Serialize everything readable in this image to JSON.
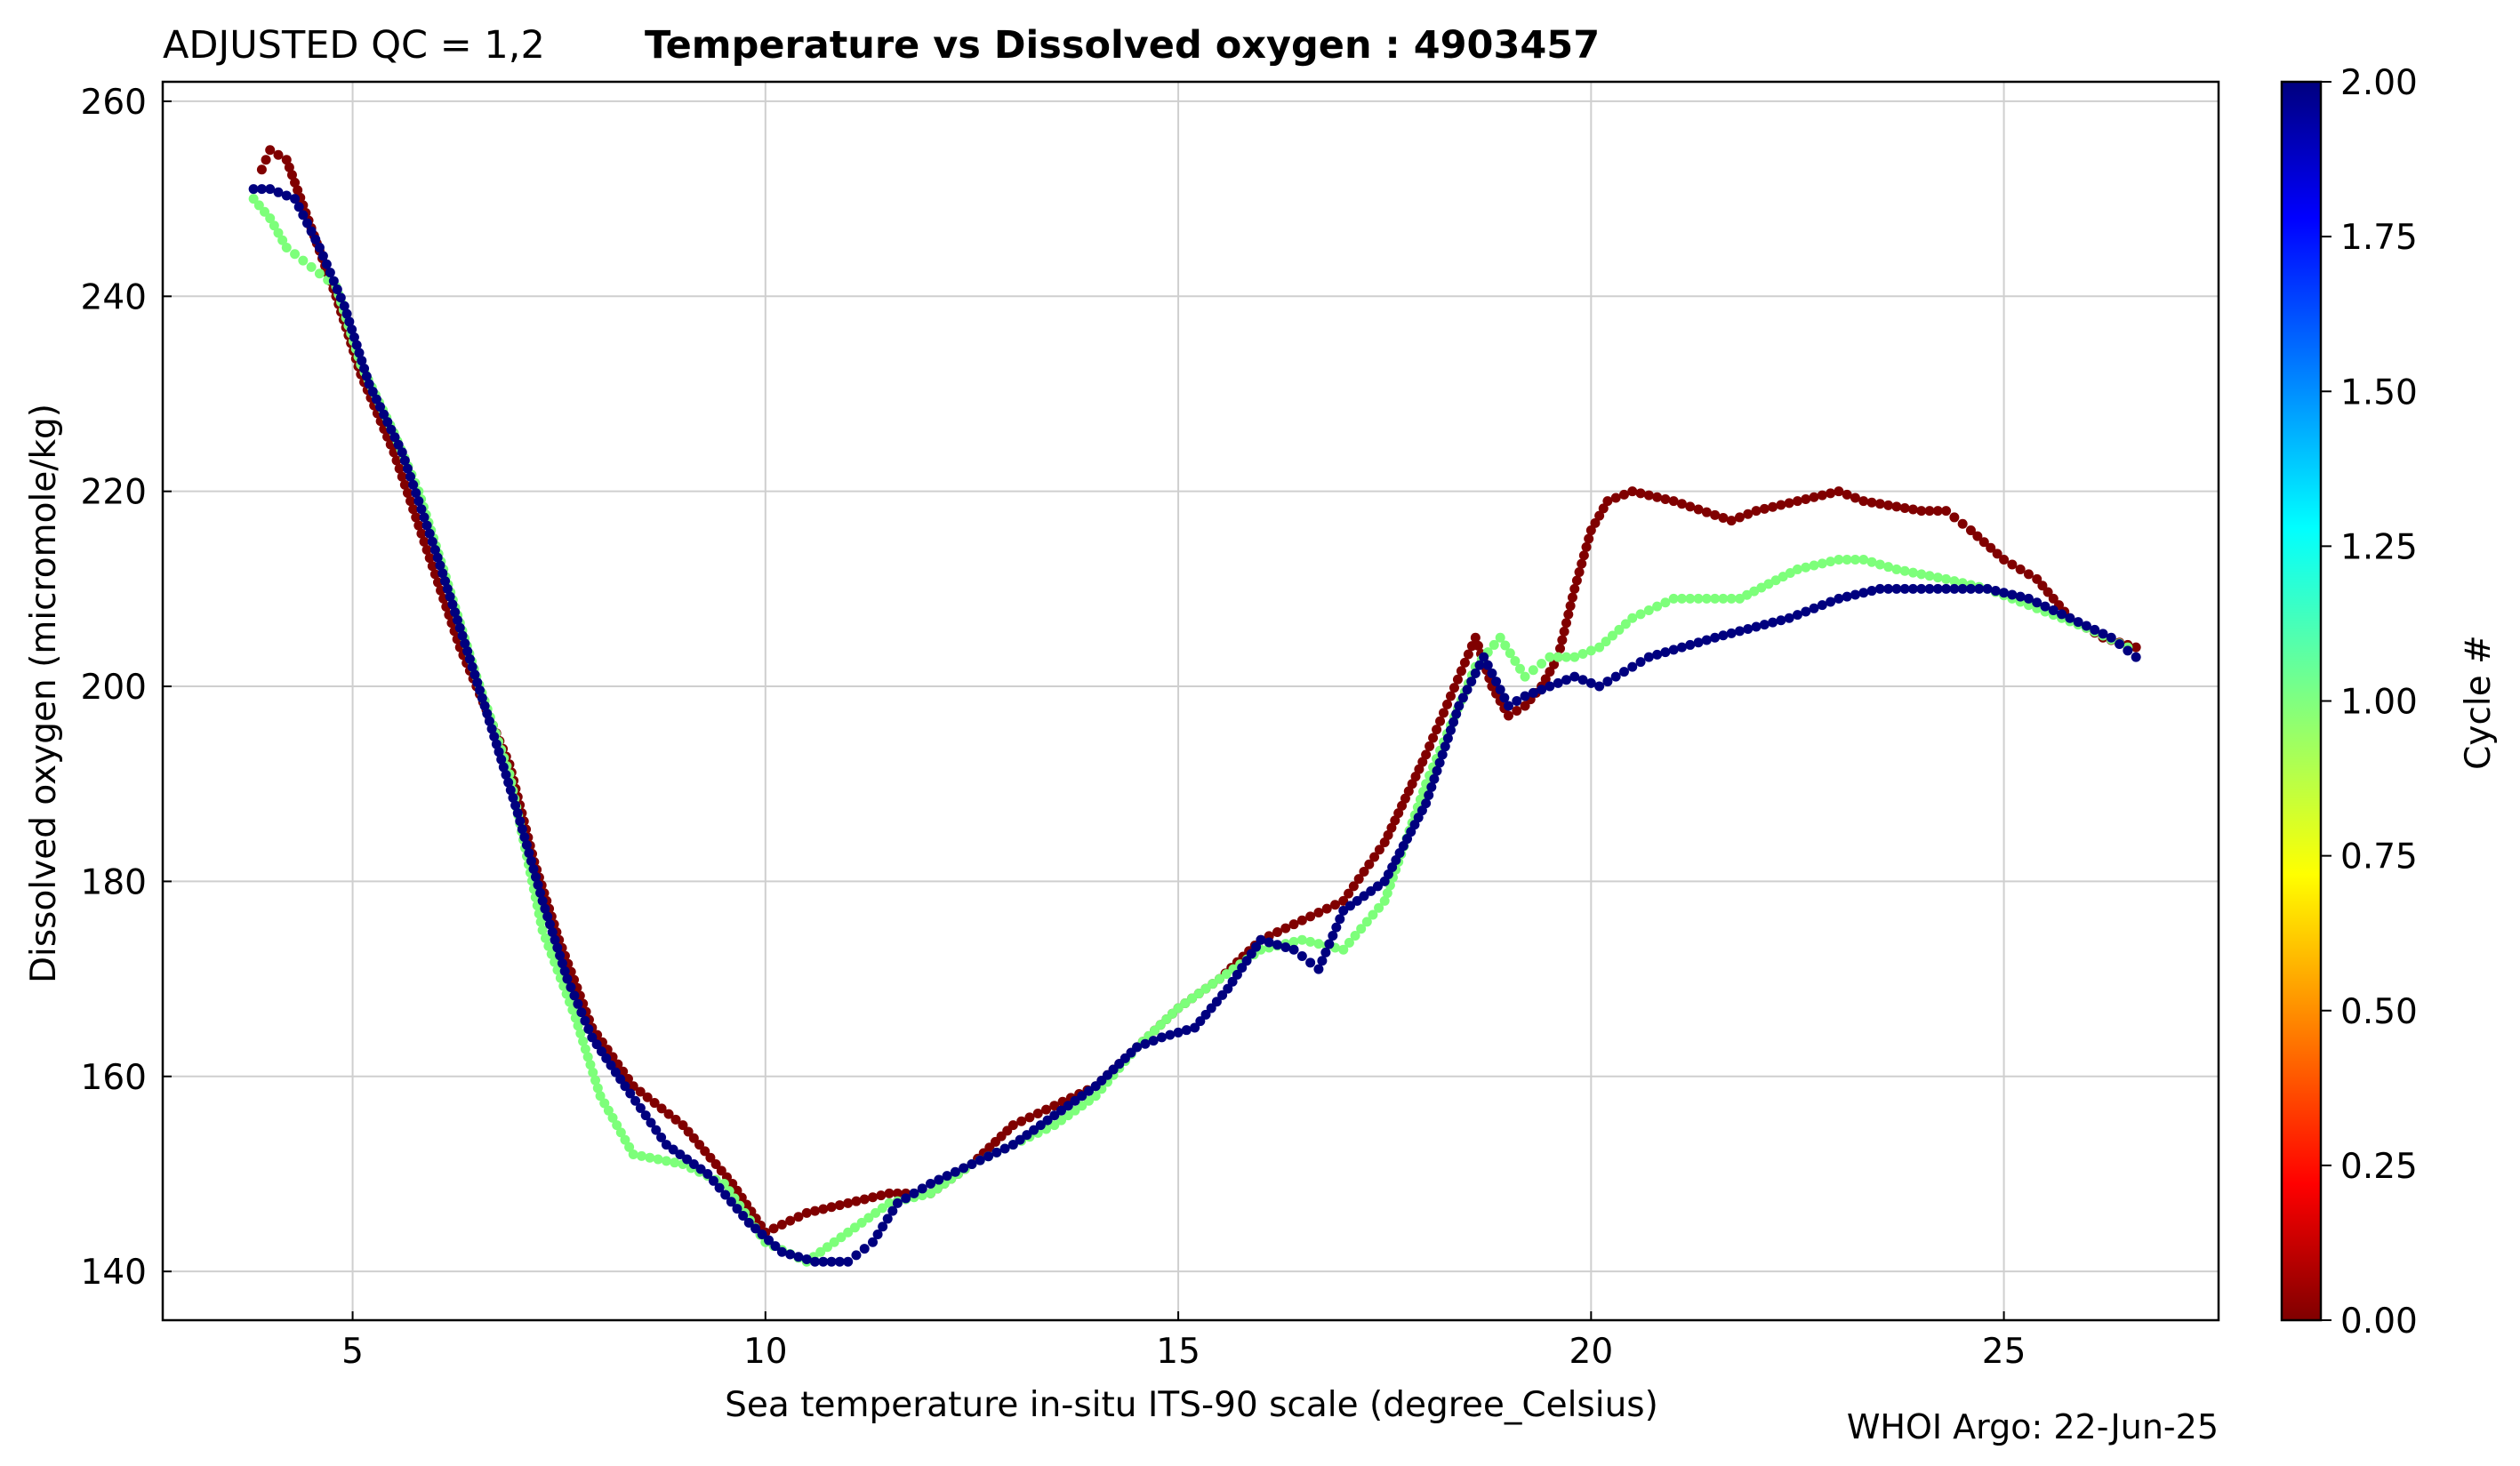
{
  "chart_data": {
    "type": "scatter",
    "title_prefix": "ADJUSTED QC = 1,2",
    "title_main": "Temperature vs Dissolved oxygen : 4903457",
    "xlabel": "Sea temperature in-situ ITS-90 scale  (degree_Celsius)",
    "ylabel": "Dissolved oxygen  (micromole/kg)",
    "xlim": [
      2.7,
      27.6
    ],
    "ylim": [
      135,
      262
    ],
    "xticks": [
      5,
      10,
      15,
      20,
      25
    ],
    "yticks": [
      140,
      160,
      180,
      200,
      220,
      240,
      260
    ],
    "grid": true,
    "footer": "WHOI Argo: 22-Jun-25",
    "colorbar": {
      "label": "Cycle #",
      "min": 0,
      "max": 2,
      "ticks": [
        "0.00",
        "0.25",
        "0.50",
        "0.75",
        "1.00",
        "1.25",
        "1.50",
        "1.75",
        "2.00"
      ],
      "colormap": "jet"
    },
    "series": [
      {
        "cycle": 0,
        "color": "#800000",
        "x": [
          3.9,
          4.0,
          4.2,
          4.5,
          4.8,
          5.1,
          5.5,
          5.9,
          6.3,
          6.9,
          7.2,
          7.5,
          7.9,
          8.4,
          9.0,
          9.6,
          10.0,
          10.5,
          11.0,
          11.5,
          12.0,
          12.5,
          13.0,
          13.5,
          14.0,
          14.5,
          15.0,
          15.5,
          16.0,
          16.5,
          17.0,
          17.5,
          18.0,
          18.3,
          18.6,
          18.8,
          19.0,
          19.2,
          19.4,
          19.6,
          19.8,
          20.0,
          20.2,
          20.5,
          21.0,
          21.7,
          22.0,
          23.0,
          23.3,
          24.0,
          24.3,
          24.6,
          25.0,
          25.4,
          25.8,
          26.2,
          26.6
        ],
        "y": [
          253,
          255,
          254,
          247,
          240,
          232,
          224,
          214,
          204,
          192,
          182,
          174,
          165,
          159,
          155,
          149,
          144,
          146,
          147,
          148,
          148,
          151,
          155,
          157,
          159,
          163,
          167,
          170,
          174,
          176,
          178,
          184,
          193,
          199,
          205,
          200,
          197,
          198,
          200,
          203,
          210,
          216,
          219,
          220,
          219,
          217,
          218,
          220,
          219,
          218,
          218,
          216,
          213,
          211,
          207,
          205,
          204
        ]
      },
      {
        "cycle": 1,
        "color": "#7dff7a",
        "x": [
          3.8,
          4.0,
          4.2,
          4.5,
          4.8,
          5.1,
          5.5,
          5.8,
          6.1,
          6.5,
          6.9,
          7.3,
          7.7,
          8.0,
          8.4,
          9.0,
          9.5,
          10.0,
          10.5,
          11.0,
          11.5,
          12.0,
          12.5,
          13.0,
          13.5,
          14.0,
          14.5,
          15.0,
          15.5,
          16.0,
          16.5,
          17.0,
          17.5,
          18.0,
          18.3,
          18.6,
          18.9,
          19.2,
          19.5,
          19.8,
          20.1,
          20.5,
          21.0,
          21.8,
          22.5,
          23.0,
          23.3,
          23.7,
          24.3,
          24.8,
          25.4,
          26.0,
          26.5
        ],
        "y": [
          250,
          248,
          245,
          243,
          241,
          233,
          226,
          220,
          212,
          201,
          191,
          175,
          166,
          158,
          152,
          151,
          149,
          143,
          141,
          144,
          147,
          148,
          151,
          153,
          155,
          158,
          163,
          167,
          170,
          173,
          174,
          173,
          178,
          190,
          196,
          202,
          205,
          201,
          203,
          203,
          204,
          207,
          209,
          209,
          212,
          213,
          213,
          212,
          211,
          210,
          208,
          206,
          204
        ]
      },
      {
        "cycle": 2,
        "color": "#00007f",
        "x": [
          3.8,
          4.0,
          4.3,
          4.6,
          4.9,
          5.2,
          5.6,
          6.0,
          6.3,
          6.6,
          7.0,
          7.3,
          7.6,
          7.9,
          8.3,
          8.8,
          9.3,
          9.8,
          10.2,
          10.6,
          11.0,
          11.3,
          11.6,
          12.0,
          12.5,
          13.0,
          13.5,
          14.0,
          14.5,
          14.8,
          15.2,
          15.6,
          16.0,
          16.4,
          16.7,
          17.0,
          17.5,
          18.0,
          18.4,
          18.7,
          19.0,
          19.2,
          19.5,
          19.8,
          20.1,
          20.5,
          20.7,
          21.5,
          22.4,
          23.0,
          23.5,
          24.3,
          24.8,
          25.3,
          25.8,
          26.3,
          26.6
        ],
        "y": [
          251,
          251,
          250,
          245,
          239,
          231,
          224,
          214,
          206,
          198,
          187,
          178,
          170,
          164,
          159,
          153,
          150,
          145,
          142,
          141,
          141,
          143,
          147,
          149,
          151,
          153,
          156,
          159,
          163,
          164,
          165,
          169,
          174,
          173,
          171,
          177,
          180,
          188,
          198,
          203,
          198,
          199,
          200,
          201,
          200,
          202,
          203,
          205,
          207,
          209,
          210,
          210,
          210,
          209,
          207,
          205,
          203
        ]
      }
    ]
  }
}
